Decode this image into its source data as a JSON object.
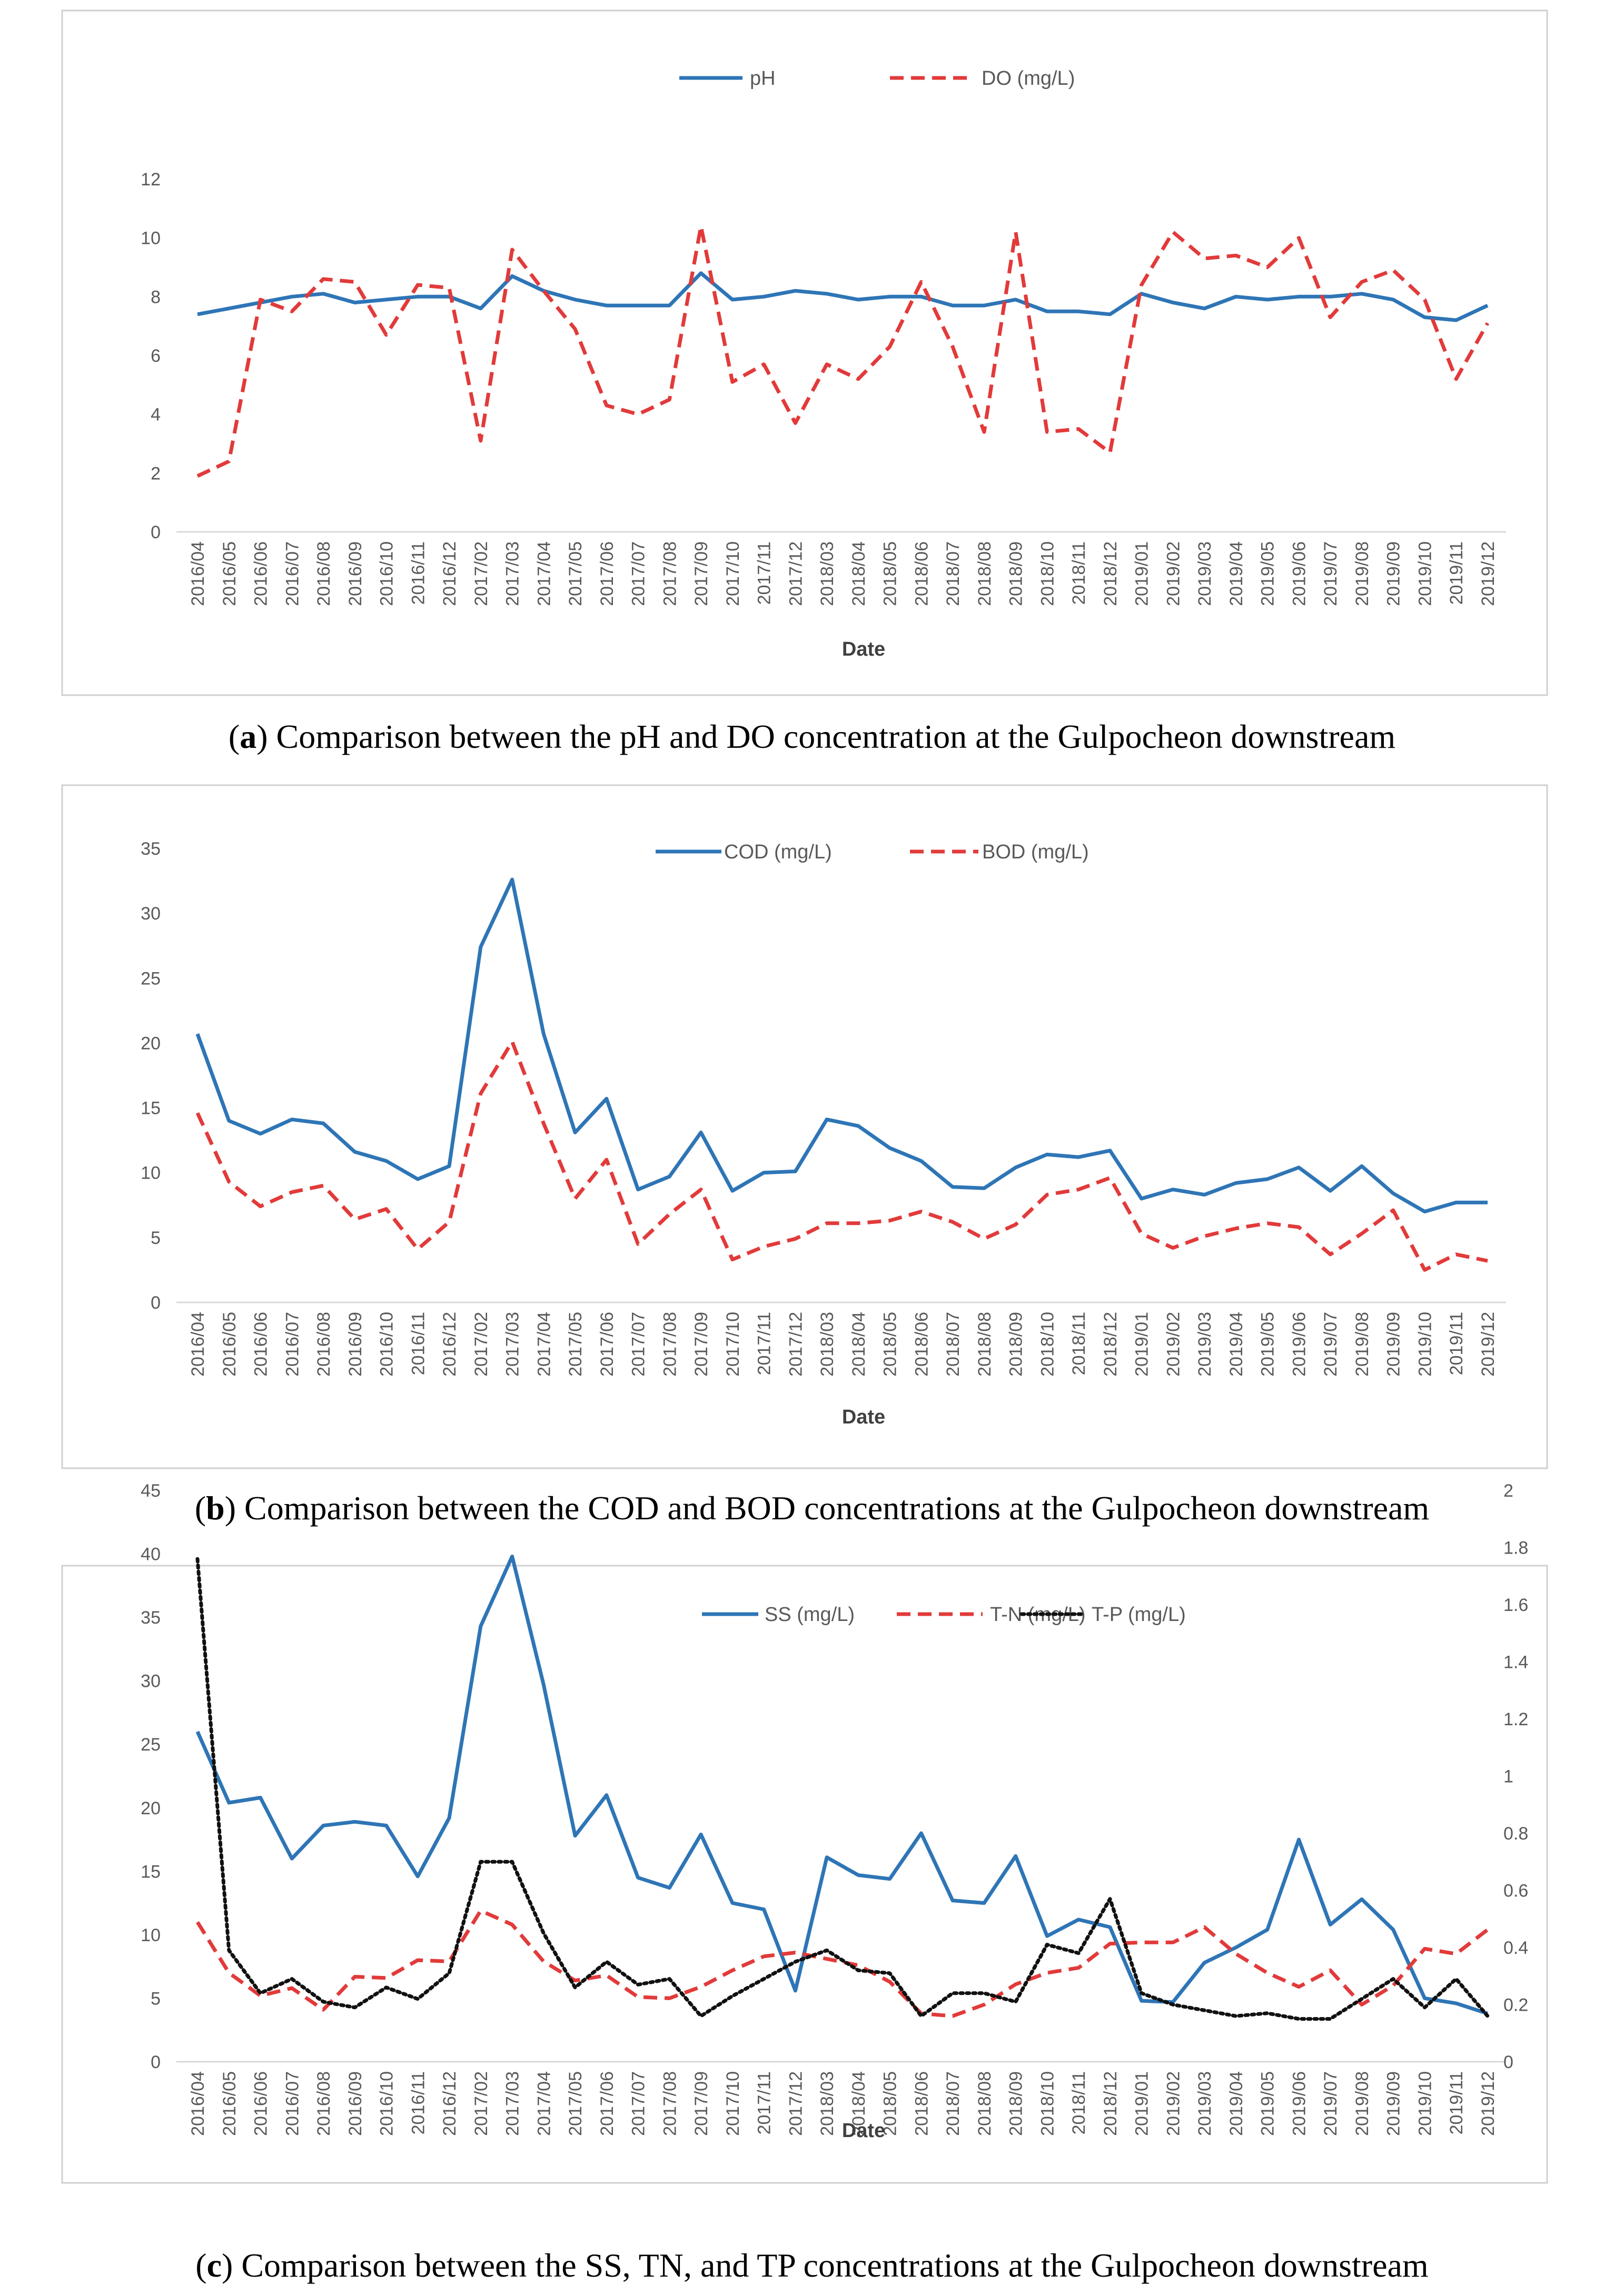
{
  "colors": {
    "series1": "#2e75b6",
    "series2": "#e23a3a",
    "series3": "#111111",
    "grid": "#d9d9d9",
    "frame": "#d0d0d0"
  },
  "x_categories": [
    "2016/04",
    "2016/05",
    "2016/06",
    "2016/07",
    "2016/08",
    "2016/09",
    "2016/10",
    "2016/11",
    "2016/12",
    "2017/02",
    "2017/03",
    "2017/04",
    "2017/05",
    "2017/06",
    "2017/07",
    "2017/08",
    "2017/09",
    "2017/10",
    "2017/11",
    "2017/12",
    "2018/03",
    "2018/04",
    "2018/05",
    "2018/06",
    "2018/07",
    "2018/08",
    "2018/09",
    "2018/10",
    "2018/11",
    "2018/12",
    "2019/01",
    "2019/02",
    "2019/03",
    "2019/04",
    "2019/05",
    "2019/06",
    "2019/07",
    "2019/08",
    "2019/09",
    "2019/10",
    "2019/11",
    "2019/12"
  ],
  "chart_data": [
    {
      "id": "a",
      "type": "line",
      "xlabel": "Date",
      "ylabel": "",
      "ylim": [
        0,
        12
      ],
      "yticks": [
        0,
        2,
        4,
        6,
        8,
        10,
        12
      ],
      "series": [
        {
          "name": "pH",
          "style": "solid",
          "values": [
            7.4,
            7.6,
            7.8,
            8.0,
            8.1,
            7.8,
            7.9,
            8.0,
            8.0,
            7.6,
            8.7,
            8.2,
            7.9,
            7.7,
            7.7,
            7.7,
            8.8,
            7.9,
            8.0,
            8.2,
            8.1,
            7.9,
            8.0,
            8.0,
            7.7,
            7.7,
            7.9,
            7.5,
            7.5,
            7.4,
            8.1,
            7.8,
            7.6,
            8.0,
            7.9,
            8.0,
            8.0,
            8.1,
            7.9,
            7.3,
            7.2,
            7.7
          ]
        },
        {
          "name": "DO (mg/L)",
          "style": "dashed",
          "values": [
            1.9,
            2.4,
            7.9,
            7.5,
            8.6,
            8.5,
            6.7,
            8.4,
            8.3,
            3.1,
            9.6,
            8.2,
            6.9,
            4.3,
            4.0,
            4.5,
            10.4,
            5.1,
            5.7,
            3.7,
            5.7,
            5.2,
            6.3,
            8.5,
            6.3,
            3.4,
            10.2,
            3.4,
            3.5,
            2.7,
            8.4,
            10.2,
            9.3,
            9.4,
            9.0,
            10.0,
            7.3,
            8.5,
            8.9,
            7.9,
            5.2,
            7.1
          ]
        }
      ],
      "caption_label": "a",
      "caption": "Comparison between the pH and DO concentration at the Gulpocheon downstream"
    },
    {
      "id": "b",
      "type": "line",
      "xlabel": "Date",
      "ylabel": "",
      "ylim": [
        0,
        35
      ],
      "yticks": [
        0,
        5,
        10,
        15,
        20,
        25,
        30,
        35
      ],
      "series": [
        {
          "name": "COD (mg/L)",
          "style": "solid",
          "values": [
            20.7,
            14.0,
            13.0,
            14.1,
            13.8,
            11.6,
            10.9,
            9.5,
            10.5,
            27.4,
            32.6,
            20.7,
            13.1,
            15.7,
            8.7,
            9.7,
            13.1,
            8.6,
            10.0,
            10.1,
            14.1,
            13.6,
            11.9,
            10.9,
            8.9,
            8.8,
            10.4,
            11.4,
            11.2,
            11.7,
            8.0,
            8.7,
            8.3,
            9.2,
            9.5,
            10.4,
            8.6,
            10.5,
            8.4,
            7.0,
            7.7,
            7.7
          ]
        },
        {
          "name": "BOD (mg/L)",
          "style": "dashed",
          "values": [
            14.6,
            9.3,
            7.4,
            8.5,
            9.0,
            6.4,
            7.2,
            4.1,
            6.2,
            16.1,
            20.1,
            13.8,
            8.0,
            11.0,
            4.5,
            6.8,
            8.7,
            3.3,
            4.3,
            4.9,
            6.1,
            6.1,
            6.3,
            7.0,
            6.2,
            4.9,
            6.0,
            8.3,
            8.7,
            9.6,
            5.3,
            4.2,
            5.1,
            5.7,
            6.1,
            5.8,
            3.7,
            5.3,
            7.1,
            2.5,
            3.7,
            3.2
          ]
        }
      ],
      "caption_label": "b",
      "caption": "Comparison between the COD and BOD concentrations at the Gulpocheon downstream"
    },
    {
      "id": "c",
      "type": "line",
      "xlabel": "Date",
      "ylabel": "",
      "ylim": [
        0,
        45
      ],
      "yticks": [
        0,
        5,
        10,
        15,
        20,
        25,
        30,
        35,
        40,
        45
      ],
      "ylim_right": [
        0,
        2
      ],
      "yticks_right": [
        "0",
        "0.2",
        "0.4",
        "0.6",
        "0.8",
        "1",
        "1.2",
        "1.4",
        "1.6",
        "1.8",
        "2"
      ],
      "series": [
        {
          "name": "SS (mg/L)",
          "style": "solid",
          "axis": "left",
          "values": [
            26.0,
            20.4,
            20.8,
            16.0,
            18.6,
            18.9,
            18.6,
            14.6,
            19.2,
            34.3,
            39.8,
            29.7,
            17.8,
            21.0,
            14.5,
            13.7,
            17.9,
            12.5,
            12.0,
            5.6,
            16.1,
            14.7,
            14.4,
            18.0,
            12.7,
            12.5,
            16.2,
            9.9,
            11.2,
            10.6,
            4.8,
            4.7,
            7.8,
            9.0,
            10.4,
            17.5,
            10.8,
            12.8,
            10.4,
            5.0,
            4.6,
            3.8
          ]
        },
        {
          "name": "T-N (mg/L)",
          "style": "dashed",
          "axis": "left",
          "values": [
            11.0,
            7.0,
            5.2,
            5.8,
            4.1,
            6.7,
            6.6,
            8.0,
            7.9,
            11.9,
            10.8,
            7.9,
            6.4,
            6.8,
            5.1,
            5.0,
            5.9,
            7.2,
            8.3,
            8.6,
            8.1,
            7.6,
            6.3,
            3.8,
            3.6,
            4.5,
            6.1,
            7.0,
            7.4,
            9.3,
            9.4,
            9.4,
            10.6,
            8.5,
            7.0,
            5.9,
            7.2,
            4.5,
            6.0,
            8.9,
            8.5,
            10.4
          ]
        },
        {
          "name": "T-P (mg/L)",
          "style": "dotted",
          "axis": "right",
          "values": [
            1.76,
            0.39,
            0.24,
            0.29,
            0.21,
            0.19,
            0.26,
            0.22,
            0.31,
            0.7,
            0.7,
            0.45,
            0.26,
            0.35,
            0.27,
            0.29,
            0.16,
            0.23,
            0.29,
            0.35,
            0.39,
            0.32,
            0.31,
            0.16,
            0.24,
            0.24,
            0.21,
            0.41,
            0.38,
            0.57,
            0.24,
            0.2,
            0.18,
            0.16,
            0.17,
            0.15,
            0.15,
            0.22,
            0.29,
            0.19,
            0.29,
            0.16
          ]
        }
      ],
      "caption_label": "c",
      "caption": "Comparison between the SS, TN, and TP concentrations at the Gulpocheon downstream"
    }
  ]
}
